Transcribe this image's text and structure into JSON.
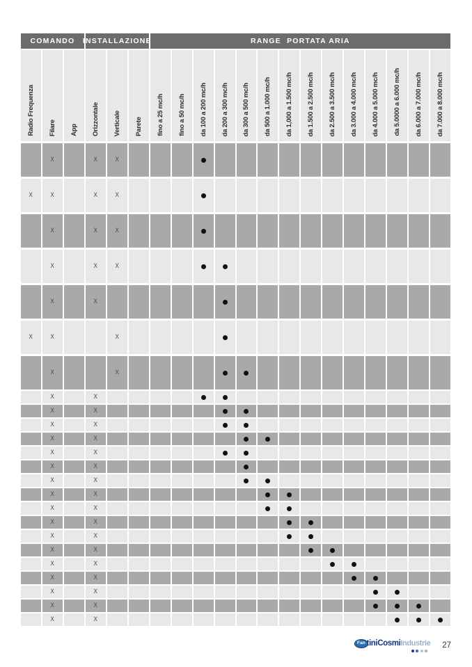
{
  "colors": {
    "band_bg": "#6b6c6e",
    "header_bg": "#e8e8e9",
    "row_dark": "#a7a9ab",
    "row_light": "#e8e8e9",
    "x_color": "#454647",
    "dot_color": "#101010",
    "brand_navy": "#16337f",
    "brand_blue": "#2d6db4",
    "brand_light": "#9db0cb",
    "logo_dot_colors": [
      "#16337f",
      "#2d6db4",
      "#b9c3d4",
      "#8fb4d8"
    ]
  },
  "table": {
    "bands": [
      {
        "label": "COMANDO",
        "span": 3
      },
      {
        "label": "INSTALLAZIONE",
        "span": 3
      },
      {
        "label": "RANGE  PORTATA ARIA",
        "span": 14
      }
    ],
    "columns": [
      "Radio Frequenza",
      "Filare",
      "App",
      "Orizzontale",
      "Verticale",
      "Parete",
      "fino a 25 mc/h",
      "fino a 50 mc/h",
      "da 100 a 200 mc/h",
      "da 200 a 300 mc/h",
      "da 300 a 500 mc/h",
      "da 500 a 1.000 mc/h",
      "da 1,000 a 1.500 mc/h",
      "da 1.500 a 2.500 mc/h",
      "da 2.500 a 3.500 mc/h",
      "da 3.000 a 4.000 mc/h",
      "da 4.000 a 5.000 mc/h",
      "da 5.0000 a 6.000 mc/h",
      "da 6.000 a 7.000 mc/h",
      "da 7.000 a 8.000 mc/h"
    ],
    "x_symbol": "X",
    "rows": [
      {
        "size": "tall",
        "shade": "dark",
        "x": [
          2,
          4,
          5
        ],
        "dot": [
          9
        ]
      },
      {
        "size": "tall",
        "shade": "light",
        "x": [
          1,
          2,
          4,
          5
        ],
        "dot": [
          9
        ]
      },
      {
        "size": "tall",
        "shade": "dark",
        "x": [
          2,
          4,
          5
        ],
        "dot": [
          9
        ]
      },
      {
        "size": "tall",
        "shade": "light",
        "x": [
          2,
          4,
          5
        ],
        "dot": [
          9,
          10
        ]
      },
      {
        "size": "tall",
        "shade": "dark",
        "x": [
          2,
          4
        ],
        "dot": [
          10
        ]
      },
      {
        "size": "tall",
        "shade": "light",
        "x": [
          1,
          2,
          5
        ],
        "dot": [
          10
        ]
      },
      {
        "size": "tall",
        "shade": "dark",
        "x": [
          2,
          5
        ],
        "dot": [
          10,
          11
        ]
      },
      {
        "size": "short",
        "shade": "light",
        "x": [
          2,
          4
        ],
        "dot": [
          9,
          10
        ]
      },
      {
        "size": "short",
        "shade": "dark",
        "x": [
          2,
          4
        ],
        "dot": [
          10,
          11
        ]
      },
      {
        "size": "short",
        "shade": "light",
        "x": [
          2,
          4
        ],
        "dot": [
          10,
          11
        ]
      },
      {
        "size": "short",
        "shade": "dark",
        "x": [
          2,
          4
        ],
        "dot": [
          11,
          12
        ]
      },
      {
        "size": "short",
        "shade": "light",
        "x": [
          2,
          4
        ],
        "dot": [
          10,
          11
        ]
      },
      {
        "size": "short",
        "shade": "dark",
        "x": [
          2,
          4
        ],
        "dot": [
          11
        ]
      },
      {
        "size": "short",
        "shade": "light",
        "x": [
          2,
          4
        ],
        "dot": [
          11,
          12
        ]
      },
      {
        "size": "short",
        "shade": "dark",
        "x": [
          2,
          4
        ],
        "dot": [
          12,
          13
        ]
      },
      {
        "size": "short",
        "shade": "light",
        "x": [
          2,
          4
        ],
        "dot": [
          12,
          13
        ]
      },
      {
        "size": "short",
        "shade": "dark",
        "x": [
          2,
          4
        ],
        "dot": [
          13,
          14
        ]
      },
      {
        "size": "short",
        "shade": "light",
        "x": [
          2,
          4
        ],
        "dot": [
          13,
          14
        ]
      },
      {
        "size": "short",
        "shade": "dark",
        "x": [
          2,
          4
        ],
        "dot": [
          14,
          15
        ]
      },
      {
        "size": "short",
        "shade": "light",
        "x": [
          2,
          4
        ],
        "dot": [
          15,
          16
        ]
      },
      {
        "size": "short",
        "shade": "dark",
        "x": [
          2,
          4
        ],
        "dot": [
          16,
          17
        ]
      },
      {
        "size": "short",
        "shade": "light",
        "x": [
          2,
          4
        ],
        "dot": [
          17,
          18
        ]
      },
      {
        "size": "short",
        "shade": "dark",
        "x": [
          2,
          4
        ],
        "dot": [
          17,
          18,
          19
        ]
      },
      {
        "size": "short",
        "shade": "light",
        "x": [
          2,
          4
        ],
        "dot": [
          18,
          19,
          20
        ]
      }
    ]
  },
  "footer": {
    "logo_prefix": "Fan",
    "logo_main": "tiniCosmi",
    "logo_suffix": "Industrie",
    "page_number": "27"
  }
}
